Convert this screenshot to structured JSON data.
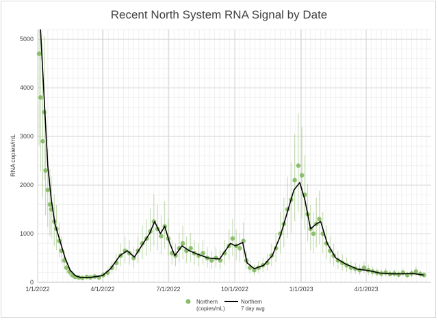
{
  "chart_data": {
    "type": "scatter",
    "title": "Recent North System RNA Signal by Date",
    "xlabel": "",
    "ylabel": "RNA copies/mL",
    "xlim": [
      "2022-01-01",
      "2023-06-30"
    ],
    "ylim": [
      0,
      5200
    ],
    "y_ticks": [
      0,
      1000,
      2000,
      3000,
      4000,
      5000
    ],
    "x_ticks": [
      {
        "date": "2022-01-01",
        "label": "1/1/2022"
      },
      {
        "date": "2022-04-01",
        "label": "4/1/2022"
      },
      {
        "date": "2022-07-01",
        "label": "7/1/2022"
      },
      {
        "date": "2022-10-01",
        "label": "10/1/2022"
      },
      {
        "date": "2023-01-01",
        "label": "1/1/2023"
      },
      {
        "date": "2023-04-01",
        "label": "4/1/2023"
      }
    ],
    "grid": true,
    "legend_position": "bottom",
    "series": [
      {
        "name": "Northern (copies/mL)",
        "legend_lines": [
          "Northern",
          "(copies/mL)"
        ],
        "kind": "points_with_error_bars",
        "color": "#70ad47",
        "points": [
          [
            "2022-01-03",
            4700
          ],
          [
            "2022-01-05",
            3800
          ],
          [
            "2022-01-08",
            2900
          ],
          [
            "2022-01-10",
            3500
          ],
          [
            "2022-01-12",
            2300
          ],
          [
            "2022-01-15",
            1900
          ],
          [
            "2022-01-18",
            1600
          ],
          [
            "2022-01-20",
            1500
          ],
          [
            "2022-01-24",
            1250
          ],
          [
            "2022-01-27",
            1100
          ],
          [
            "2022-01-31",
            850
          ],
          [
            "2022-02-03",
            650
          ],
          [
            "2022-02-07",
            450
          ],
          [
            "2022-02-10",
            300
          ],
          [
            "2022-02-14",
            220
          ],
          [
            "2022-02-18",
            150
          ],
          [
            "2022-02-22",
            110
          ],
          [
            "2022-02-27",
            100
          ],
          [
            "2022-03-04",
            90
          ],
          [
            "2022-03-10",
            110
          ],
          [
            "2022-03-15",
            100
          ],
          [
            "2022-03-21",
            120
          ],
          [
            "2022-03-27",
            100
          ],
          [
            "2022-04-02",
            150
          ],
          [
            "2022-04-08",
            200
          ],
          [
            "2022-04-14",
            300
          ],
          [
            "2022-04-20",
            400
          ],
          [
            "2022-04-26",
            550
          ],
          [
            "2022-05-02",
            650
          ],
          [
            "2022-05-08",
            600
          ],
          [
            "2022-05-14",
            500
          ],
          [
            "2022-05-20",
            650
          ],
          [
            "2022-05-26",
            800
          ],
          [
            "2022-06-01",
            900
          ],
          [
            "2022-06-06",
            1050
          ],
          [
            "2022-06-11",
            1250
          ],
          [
            "2022-06-16",
            1100
          ],
          [
            "2022-06-21",
            950
          ],
          [
            "2022-06-26",
            1150
          ],
          [
            "2022-07-01",
            900
          ],
          [
            "2022-07-06",
            600
          ],
          [
            "2022-07-11",
            550
          ],
          [
            "2022-07-16",
            700
          ],
          [
            "2022-07-21",
            800
          ],
          [
            "2022-07-26",
            650
          ],
          [
            "2022-08-01",
            700
          ],
          [
            "2022-08-06",
            600
          ],
          [
            "2022-08-12",
            550
          ],
          [
            "2022-08-18",
            600
          ],
          [
            "2022-08-24",
            500
          ],
          [
            "2022-08-30",
            450
          ],
          [
            "2022-09-05",
            500
          ],
          [
            "2022-09-11",
            450
          ],
          [
            "2022-09-17",
            600
          ],
          [
            "2022-09-23",
            750
          ],
          [
            "2022-09-28",
            900
          ],
          [
            "2022-10-03",
            750
          ],
          [
            "2022-10-08",
            700
          ],
          [
            "2022-10-13",
            850
          ],
          [
            "2022-10-17",
            450
          ],
          [
            "2022-10-22",
            300
          ],
          [
            "2022-10-28",
            250
          ],
          [
            "2022-11-03",
            300
          ],
          [
            "2022-11-09",
            350
          ],
          [
            "2022-11-15",
            400
          ],
          [
            "2022-11-21",
            550
          ],
          [
            "2022-11-27",
            700
          ],
          [
            "2022-12-03",
            1000
          ],
          [
            "2022-12-08",
            1200
          ],
          [
            "2022-12-13",
            1500
          ],
          [
            "2022-12-18",
            1700
          ],
          [
            "2022-12-23",
            2100
          ],
          [
            "2022-12-28",
            2400
          ],
          [
            "2023-01-02",
            2200
          ],
          [
            "2023-01-06",
            1800
          ],
          [
            "2023-01-10",
            1400
          ],
          [
            "2023-01-14",
            1100
          ],
          [
            "2023-01-18",
            1000
          ],
          [
            "2023-01-22",
            1200
          ],
          [
            "2023-01-26",
            1300
          ],
          [
            "2023-01-31",
            1000
          ],
          [
            "2023-02-05",
            800
          ],
          [
            "2023-02-10",
            650
          ],
          [
            "2023-02-15",
            550
          ],
          [
            "2023-02-21",
            450
          ],
          [
            "2023-02-27",
            400
          ],
          [
            "2023-03-05",
            350
          ],
          [
            "2023-03-11",
            300
          ],
          [
            "2023-03-17",
            280
          ],
          [
            "2023-03-23",
            250
          ],
          [
            "2023-03-29",
            300
          ],
          [
            "2023-04-04",
            250
          ],
          [
            "2023-04-10",
            220
          ],
          [
            "2023-04-16",
            200
          ],
          [
            "2023-04-22",
            180
          ],
          [
            "2023-04-28",
            200
          ],
          [
            "2023-05-04",
            170
          ],
          [
            "2023-05-10",
            180
          ],
          [
            "2023-05-16",
            160
          ],
          [
            "2023-05-22",
            200
          ],
          [
            "2023-05-28",
            150
          ],
          [
            "2023-06-03",
            180
          ],
          [
            "2023-06-09",
            220
          ],
          [
            "2023-06-15",
            170
          ],
          [
            "2023-06-20",
            150
          ]
        ]
      },
      {
        "name": "Northern 7 day avg",
        "legend_lines": [
          "Northern",
          "7 day avg"
        ],
        "kind": "line",
        "color": "#000000",
        "points": [
          [
            "2022-01-05",
            5200
          ],
          [
            "2022-01-10",
            3800
          ],
          [
            "2022-01-15",
            2400
          ],
          [
            "2022-01-20",
            1700
          ],
          [
            "2022-01-25",
            1200
          ],
          [
            "2022-02-01",
            850
          ],
          [
            "2022-02-08",
            500
          ],
          [
            "2022-02-15",
            250
          ],
          [
            "2022-02-22",
            140
          ],
          [
            "2022-03-01",
            100
          ],
          [
            "2022-03-15",
            100
          ],
          [
            "2022-04-01",
            140
          ],
          [
            "2022-04-12",
            280
          ],
          [
            "2022-04-25",
            550
          ],
          [
            "2022-05-05",
            650
          ],
          [
            "2022-05-15",
            520
          ],
          [
            "2022-05-25",
            750
          ],
          [
            "2022-06-05",
            1000
          ],
          [
            "2022-06-12",
            1250
          ],
          [
            "2022-06-20",
            1000
          ],
          [
            "2022-06-26",
            1150
          ],
          [
            "2022-07-03",
            800
          ],
          [
            "2022-07-10",
            550
          ],
          [
            "2022-07-20",
            750
          ],
          [
            "2022-07-30",
            650
          ],
          [
            "2022-08-10",
            580
          ],
          [
            "2022-08-25",
            500
          ],
          [
            "2022-09-10",
            480
          ],
          [
            "2022-09-25",
            800
          ],
          [
            "2022-10-02",
            750
          ],
          [
            "2022-10-12",
            820
          ],
          [
            "2022-10-18",
            400
          ],
          [
            "2022-10-28",
            280
          ],
          [
            "2022-11-10",
            350
          ],
          [
            "2022-11-22",
            550
          ],
          [
            "2022-12-03",
            950
          ],
          [
            "2022-12-13",
            1450
          ],
          [
            "2022-12-22",
            1900
          ],
          [
            "2022-12-30",
            2050
          ],
          [
            "2023-01-06",
            1700
          ],
          [
            "2023-01-14",
            1100
          ],
          [
            "2023-01-22",
            1200
          ],
          [
            "2023-01-28",
            1250
          ],
          [
            "2023-02-06",
            800
          ],
          [
            "2023-02-18",
            500
          ],
          [
            "2023-03-03",
            380
          ],
          [
            "2023-03-20",
            270
          ],
          [
            "2023-04-05",
            240
          ],
          [
            "2023-04-20",
            190
          ],
          [
            "2023-05-05",
            175
          ],
          [
            "2023-05-20",
            175
          ],
          [
            "2023-06-05",
            180
          ],
          [
            "2023-06-20",
            150
          ]
        ]
      }
    ]
  }
}
